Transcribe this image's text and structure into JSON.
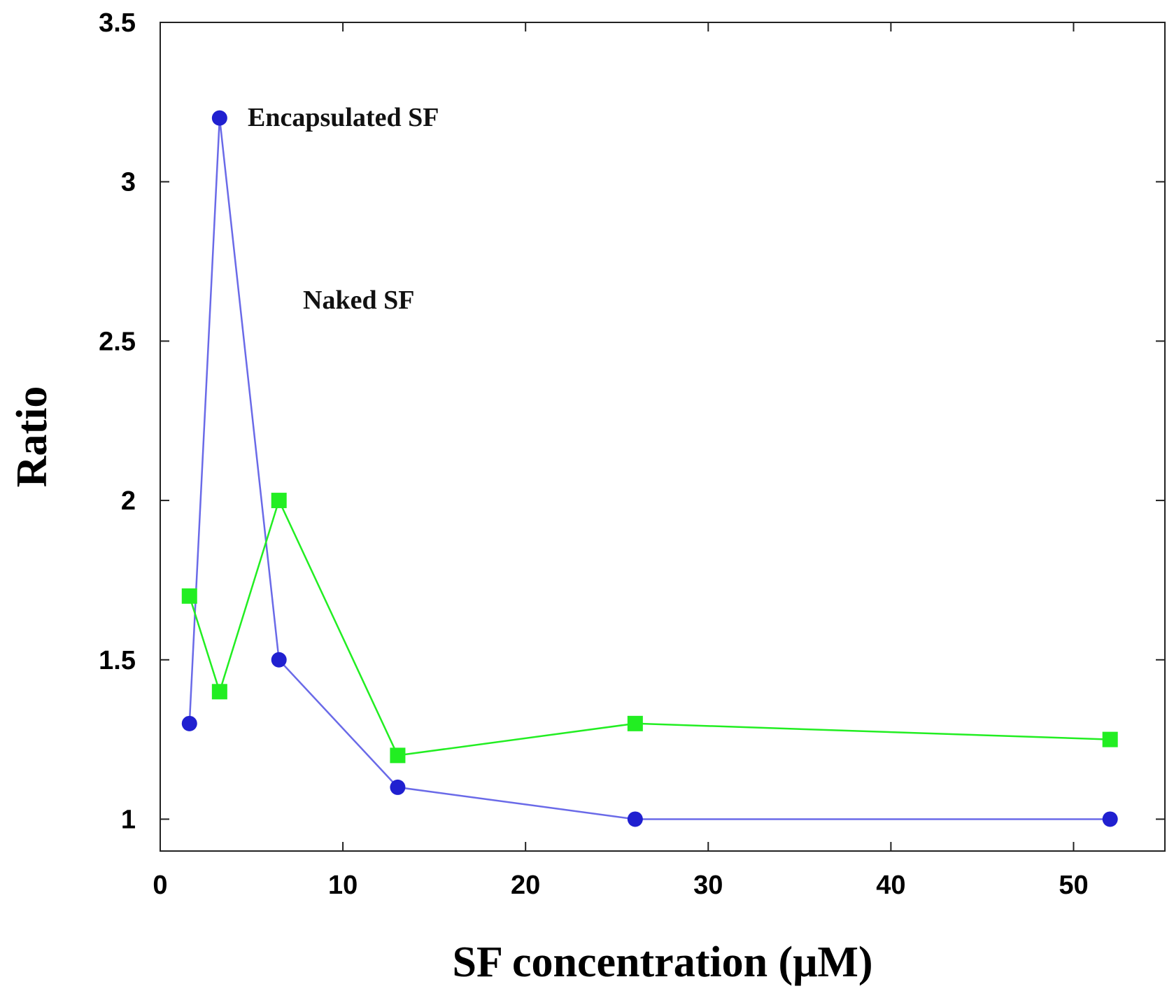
{
  "chart_data": {
    "type": "line",
    "title": "",
    "xlabel": "SF concentration (μM)",
    "ylabel": "Ratio",
    "xlim": [
      0,
      55
    ],
    "ylim": [
      0.9,
      3.5
    ],
    "xticks": [
      0,
      10,
      20,
      30,
      40,
      50
    ],
    "xtick_labels": [
      "0",
      "10",
      "20",
      "30",
      "40",
      "50"
    ],
    "yticks": [
      1,
      1.5,
      2,
      2.5,
      3,
      3.5
    ],
    "ytick_labels": [
      "1",
      "1.5",
      "2",
      "2.5",
      "3",
      "3.5"
    ],
    "grid": false,
    "series": [
      {
        "name": "Encapsulated SF",
        "color": "#2020d0",
        "line_color": "#6a6ae8",
        "marker": "circle",
        "x": [
          1.6,
          3.25,
          6.5,
          13,
          26,
          52
        ],
        "y": [
          1.3,
          3.2,
          1.5,
          1.1,
          1.0,
          1.0
        ]
      },
      {
        "name": "Naked SF",
        "color": "#22ee22",
        "line_color": "#22ee22",
        "marker": "square",
        "x": [
          1.6,
          3.25,
          6.5,
          13,
          26,
          52
        ],
        "y": [
          1.7,
          1.4,
          2.0,
          1.2,
          1.3,
          1.25
        ]
      }
    ],
    "annotations": [
      {
        "text": "Encapsulated SF",
        "x": 5,
        "y": 3.2
      },
      {
        "text": "Naked SF",
        "x": 8,
        "y": 2.62
      }
    ]
  }
}
